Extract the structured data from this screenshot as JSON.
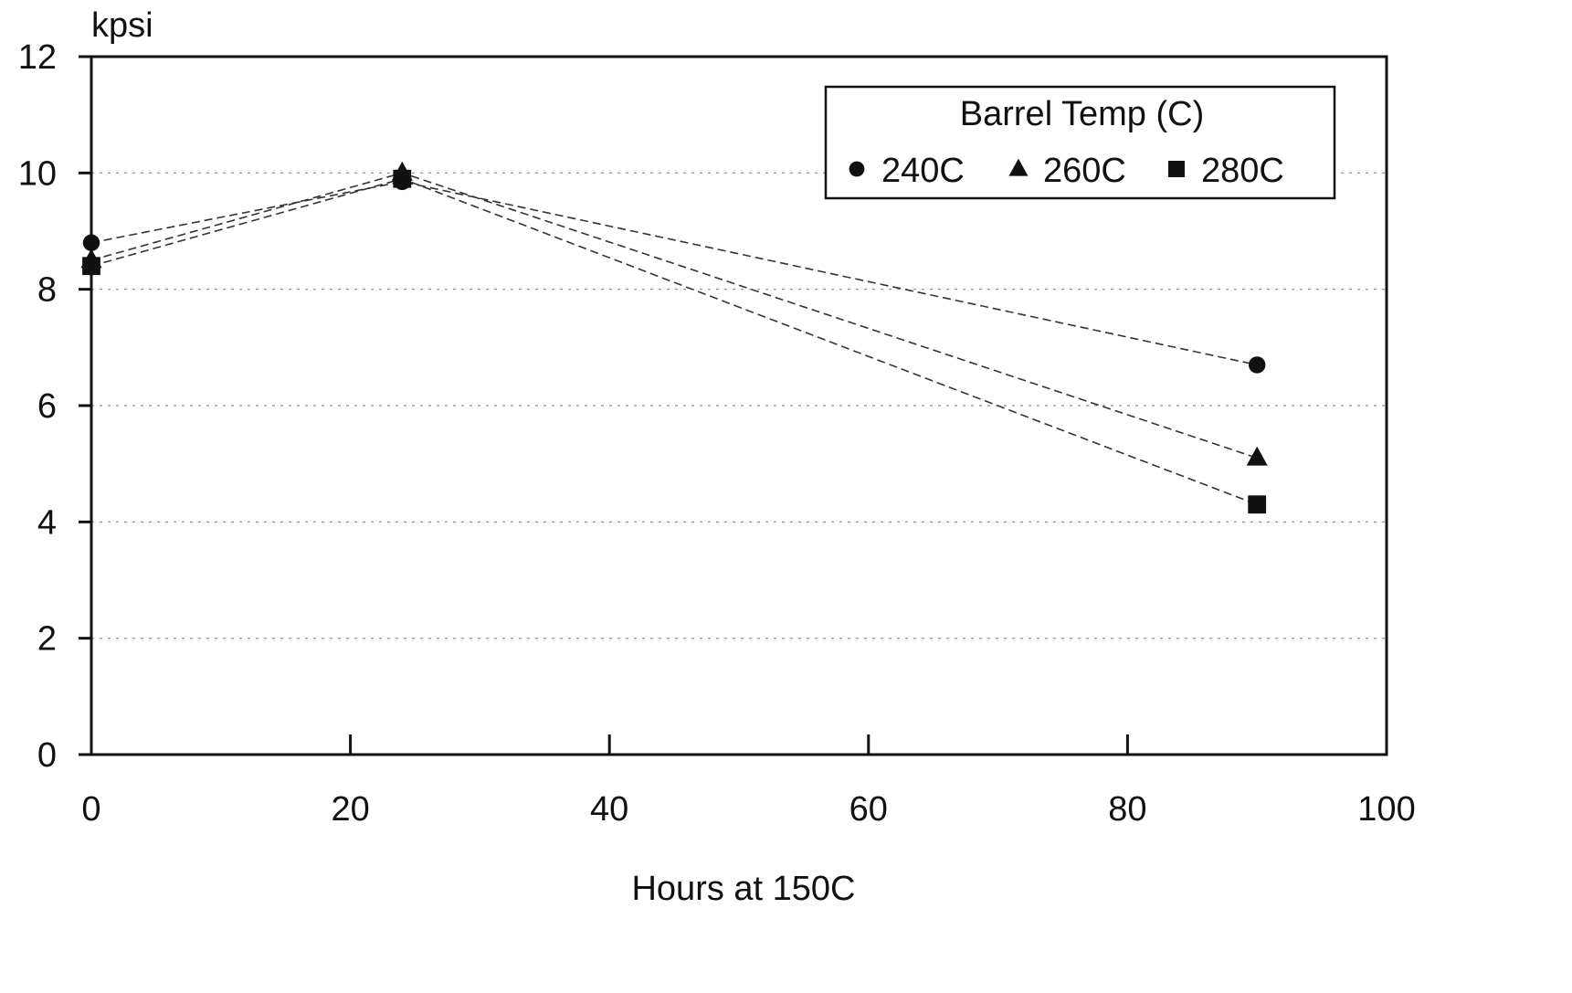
{
  "chart_data": {
    "type": "line",
    "title": "",
    "xlabel": "Hours at 150C",
    "ylabel": "kpsi",
    "xlim": [
      0,
      100
    ],
    "ylim": [
      0,
      12
    ],
    "x_ticks": [
      0,
      20,
      40,
      60,
      80,
      100
    ],
    "y_ticks": [
      0,
      2,
      4,
      6,
      8,
      10,
      12
    ],
    "grid": "horizontal dotted",
    "legend": {
      "title": "Barrel Temp (C)",
      "placement": "top-right"
    },
    "series": [
      {
        "name": "240C",
        "marker": "circle",
        "x": [
          0,
          24,
          90
        ],
        "y": [
          8.8,
          9.85,
          6.7
        ]
      },
      {
        "name": "260C",
        "marker": "triangle",
        "x": [
          0,
          24,
          90
        ],
        "y": [
          8.5,
          10.0,
          5.1
        ]
      },
      {
        "name": "280C",
        "marker": "square",
        "x": [
          0,
          24,
          90
        ],
        "y": [
          8.4,
          9.9,
          4.3
        ]
      }
    ],
    "colors": {
      "ink": "#111111",
      "line": "#333333",
      "grid": "#8a8a8a"
    }
  }
}
